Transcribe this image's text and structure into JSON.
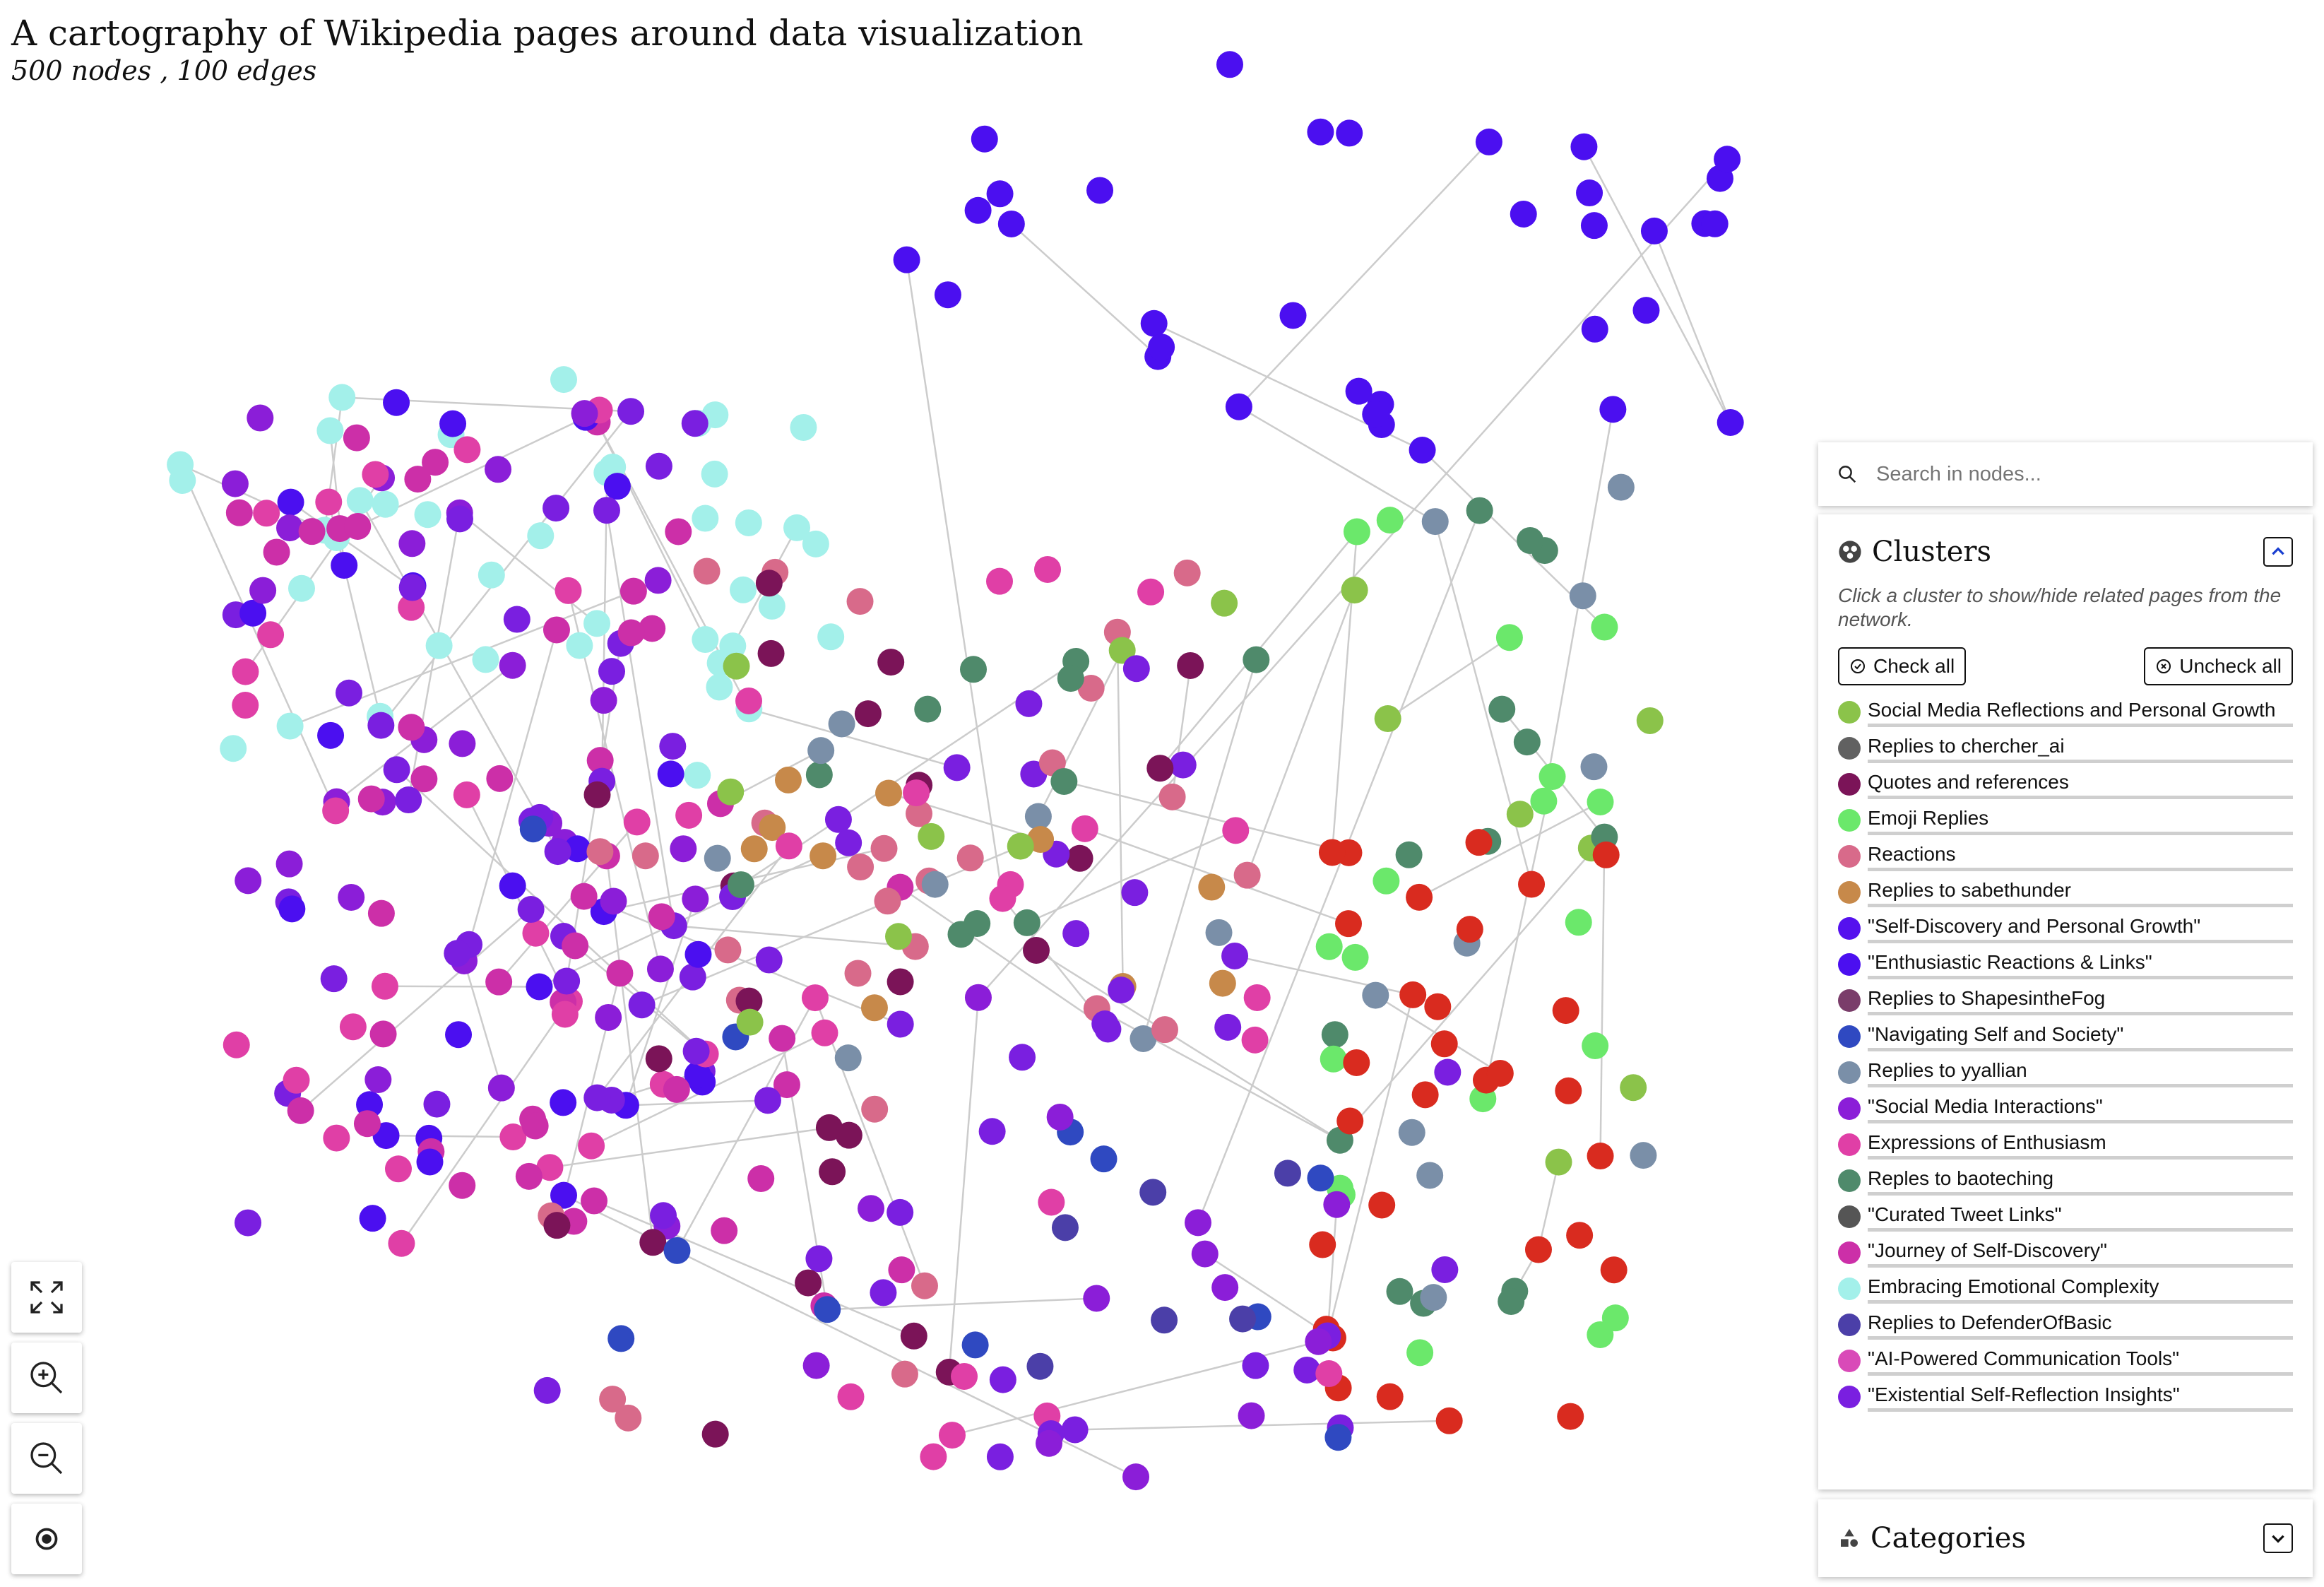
{
  "header": {
    "title": "A cartography of Wikipedia pages around data visualization",
    "subtitle": "500 nodes , 100 edges"
  },
  "controls": {
    "fullscreen_icon": "expand-icon",
    "zoom_in_icon": "zoom-in-icon",
    "zoom_out_icon": "zoom-out-icon",
    "reset_icon": "target-icon"
  },
  "search": {
    "placeholder": "Search in nodes..."
  },
  "clusters_panel": {
    "title": "Clusters",
    "hint": "Click a cluster to show/hide related pages from the network.",
    "check_all": "Check all",
    "uncheck_all": "Uncheck all",
    "items": [
      {
        "label": "Social Media Reflections and Personal Growth",
        "color": "#8bc34a"
      },
      {
        "label": "Replies to chercher_ai",
        "color": "#616161"
      },
      {
        "label": "Quotes and references",
        "color": "#7b1458"
      },
      {
        "label": "Emoji Replies",
        "color": "#6be86b"
      },
      {
        "label": "Reactions",
        "color": "#d86a8a"
      },
      {
        "label": "Replies to sabethunder",
        "color": "#c7894a"
      },
      {
        "label": "\"Self-Discovery and Personal Growth\"",
        "color": "#5511ee"
      },
      {
        "label": "\"Enthusiastic Reactions & Links\"",
        "color": "#4b0ff0"
      },
      {
        "label": "Replies to ShapesintheFog",
        "color": "#7a3d6a"
      },
      {
        "label": "\"Navigating Self and Society\"",
        "color": "#2f49c1"
      },
      {
        "label": "Replies to yyallian",
        "color": "#7a8fa8"
      },
      {
        "label": "\"Social Media Interactions\"",
        "color": "#8b1ed8"
      },
      {
        "label": "Expressions of Enthusiasm",
        "color": "#e03fa6"
      },
      {
        "label": "Reples to baoteching",
        "color": "#4f8a6b"
      },
      {
        "label": "\"Curated Tweet Links\"",
        "color": "#555555"
      },
      {
        "label": "\"Journey of Self-Discovery\"",
        "color": "#cc2fa8"
      },
      {
        "label": "Embracing Emotional Complexity",
        "color": "#a3f0ea"
      },
      {
        "label": "Replies to DefenderOfBasic",
        "color": "#4b3fa8"
      },
      {
        "label": "\"AI-Powered Communication Tools\"",
        "color": "#d94ab8"
      },
      {
        "label": "\"Existential Self-Reflection Insights\"",
        "color": "#7a1fe0"
      }
    ]
  },
  "categories_panel": {
    "title": "Categories"
  },
  "graph": {
    "palette": {
      "teal": "#a3f0ea",
      "magenta": "#cc2fa8",
      "pink": "#e03fa6",
      "purple": "#7a1fe0",
      "violet": "#8b1ed8",
      "blue": "#4b0ff0",
      "navy": "#2f49c1",
      "indigo": "#4b3fa8",
      "maroon": "#7b1458",
      "rose": "#d86a8a",
      "green": "#6be86b",
      "olive": "#8bc34a",
      "red": "#d92b1f",
      "orange": "#c7894a",
      "slate": "#7a8fa8",
      "seagreen": "#4f8a6b"
    }
  }
}
